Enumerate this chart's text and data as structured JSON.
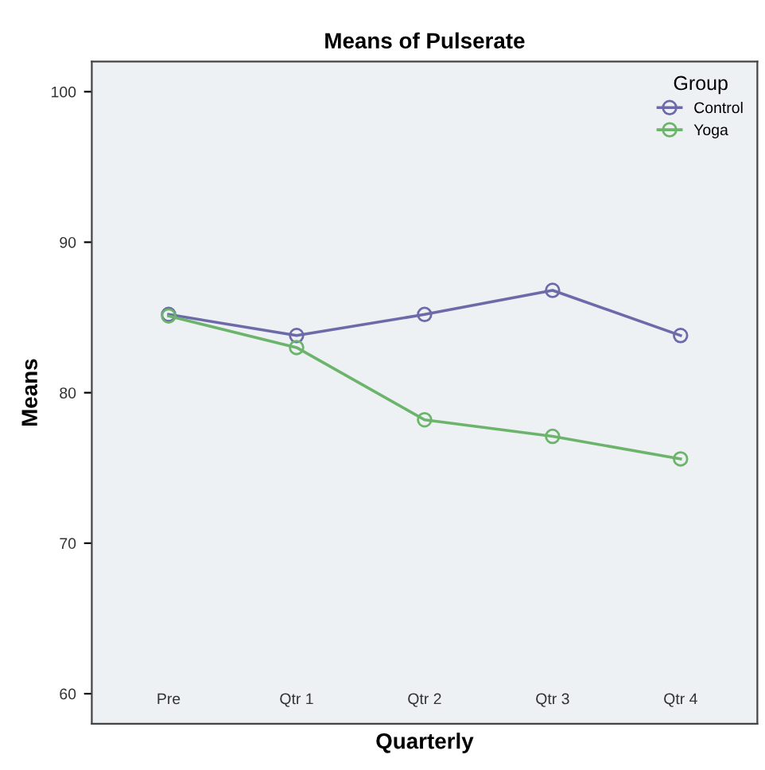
{
  "chart_data": {
    "type": "line",
    "title": "Means of Pulserate",
    "xlabel": "Quarterly",
    "ylabel": "Means",
    "categories": [
      "Pre",
      "Qtr 1",
      "Qtr 2",
      "Qtr 3",
      "Qtr 4"
    ],
    "series": [
      {
        "name": "Control",
        "color": "#6c6aa8",
        "values": [
          85.2,
          83.8,
          85.2,
          86.8,
          83.8
        ]
      },
      {
        "name": "Yoga",
        "color": "#6cb46c",
        "values": [
          85.1,
          83.0,
          78.2,
          77.1,
          75.6
        ]
      }
    ],
    "ylim": [
      58,
      102
    ],
    "yticks": [
      60,
      70,
      80,
      90,
      100
    ],
    "legend": "top right",
    "legend_title": "Group",
    "marker": "circle",
    "grid": false
  }
}
